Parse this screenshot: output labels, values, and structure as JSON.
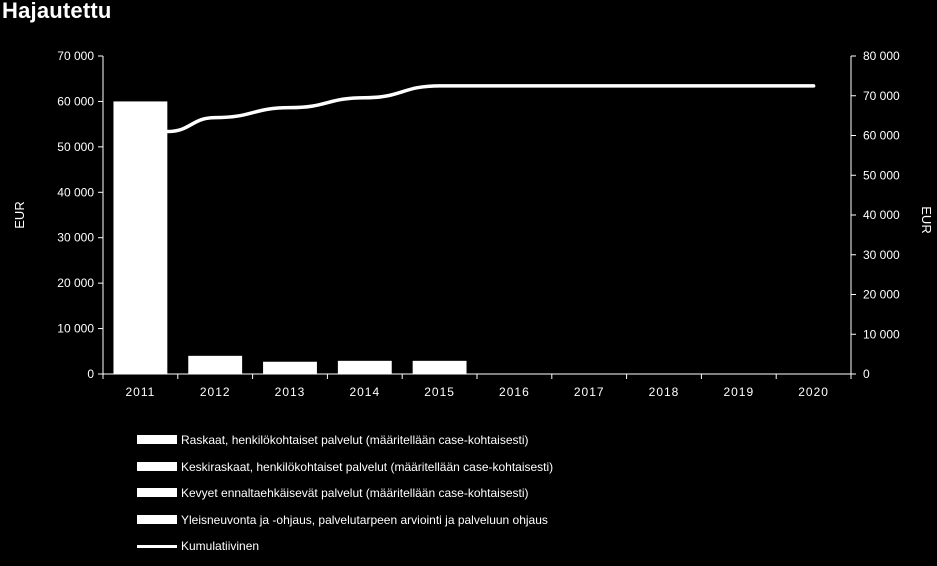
{
  "chart_data": {
    "type": "bar",
    "title": "Hajautettu",
    "categories": [
      "2011",
      "2012",
      "2013",
      "2014",
      "2015",
      "2016",
      "2017",
      "2018",
      "2019",
      "2020"
    ],
    "ylabel_left": "EUR",
    "ylabel_right": "EUR",
    "ylim_left": [
      0,
      70000
    ],
    "ylim_right": [
      0,
      80000
    ],
    "yticks_left": [
      "0",
      "10 000",
      "20 000",
      "30 000",
      "40 000",
      "50 000",
      "60 000",
      "70 000"
    ],
    "yticks_right": [
      "0",
      "10 000",
      "20 000",
      "30 000",
      "40 000",
      "50 000",
      "60 000",
      "70 000",
      "80 000"
    ],
    "grid": false,
    "legend_placement": "bottom",
    "series": [
      {
        "name": "Raskaat, henkilökohtaiset palvelut (määritellään  case-kohtaisesti)",
        "kind": "bar",
        "axis": "left",
        "values": [
          60000,
          4000,
          2700,
          2900,
          2900,
          0,
          0,
          0,
          0,
          0
        ]
      },
      {
        "name": "Keskiraskaat, henkilökohtaiset palvelut (määritellään  case-kohtaisesti)",
        "kind": "bar",
        "axis": "left",
        "values": [
          0,
          0,
          0,
          0,
          0,
          0,
          0,
          0,
          0,
          0
        ]
      },
      {
        "name": "Kevyet ennaltaehkäisevät  palvelut (määritellään  case-kohtaisesti)",
        "kind": "bar",
        "axis": "left",
        "values": [
          0,
          0,
          0,
          0,
          0,
          0,
          0,
          0,
          0,
          0
        ]
      },
      {
        "name": "Yleisneuvonta ja -ohjaus, palvelutarpeen arviointi ja palveluun ohjaus",
        "kind": "bar",
        "axis": "left",
        "values": [
          0,
          0,
          0,
          0,
          0,
          0,
          0,
          0,
          0,
          0
        ]
      },
      {
        "name": "Kumulatiivinen",
        "kind": "line",
        "axis": "right",
        "values": [
          61000,
          64500,
          67000,
          69500,
          72500,
          72500,
          72500,
          72500,
          72500,
          72500
        ]
      }
    ],
    "colors": {
      "background": "#000000",
      "foreground": "#ffffff"
    }
  }
}
